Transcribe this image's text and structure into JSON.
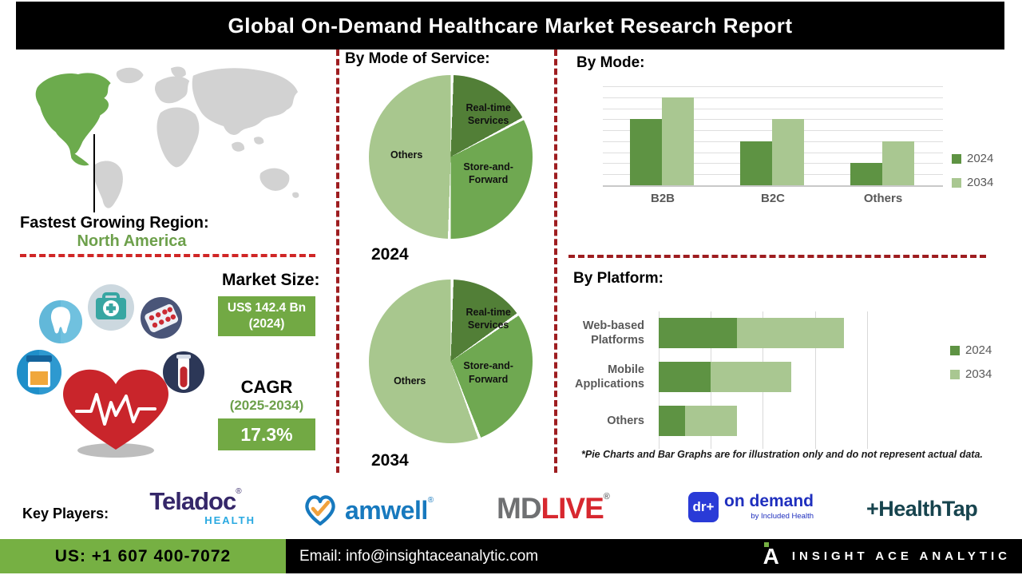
{
  "title": "Global On-Demand Healthcare Market Research Report",
  "region": {
    "heading": "Fastest Growing Region:",
    "value": "North America"
  },
  "headings": {
    "mode_of_service": "By Mode of Service:",
    "by_mode": "By Mode:",
    "by_platform": "By Platform:"
  },
  "market": {
    "heading": "Market Size:",
    "size_value": "US$ 142.4 Bn",
    "size_year": "(2024)",
    "cagr_label": "CAGR",
    "cagr_period": "(2025-2034)",
    "cagr_value": "17.3%"
  },
  "footnote": "*Pie Charts and Bar Graphs are for illustration only and do not represent actual data.",
  "key_players": {
    "label": "Key Players:",
    "teladoc": {
      "name": "Teladoc",
      "reg": "®",
      "sub": "HEALTH"
    },
    "amwell": {
      "name": "amwell",
      "reg": "®"
    },
    "mdlive": {
      "md": "MD",
      "live": "LIVE",
      "reg": "®"
    },
    "doctor_on_demand": {
      "badge": "dr+",
      "name": "on demand",
      "sub": "by Included Health"
    },
    "healthtap": {
      "name": "+HealthTap"
    }
  },
  "footer": {
    "phone": "US: +1 607 400-7072",
    "email": "Email: info@insightaceanalytic.com",
    "brand_initial": "A",
    "brand": "INSIGHT ACE ANALYTIC"
  },
  "colors": {
    "pie_dark_green": "#527f37",
    "pie_mid_green": "#6fa851",
    "pie_light_green": "#a8c78e",
    "bar_2024_green": "#5e9343",
    "bar_2034_green": "#a9c791",
    "accent_box_green": "#72a944",
    "footer_green": "#76b043",
    "map_highlight_green": "#6cab4d",
    "map_gray": "#d2d2d2",
    "dash_red_dark": "#9e1d20",
    "dash_red_bright": "#d02626"
  },
  "chart_data": [
    {
      "type": "pie",
      "title": "By Mode of Service:",
      "year": "2024",
      "labels": [
        "Real-time Services",
        "Store-and-Forward",
        "Others"
      ],
      "values": [
        17,
        33,
        50
      ],
      "colors": [
        "#527f37",
        "#6fa851",
        "#a8c78e"
      ],
      "note": "illustrative percentages estimated from slice angles"
    },
    {
      "type": "pie",
      "title": "By Mode of Service:",
      "year": "2034",
      "labels": [
        "Real-time Services",
        "Store-and-Forward",
        "Others"
      ],
      "values": [
        15,
        29,
        56
      ],
      "colors": [
        "#527f37",
        "#6fa851",
        "#a8c78e"
      ],
      "note": "illustrative percentages estimated from slice angles"
    },
    {
      "type": "bar",
      "title": "By Mode:",
      "categories": [
        "B2B",
        "B2C",
        "Others"
      ],
      "series": [
        {
          "name": "2024",
          "color": "#5e9343",
          "values": [
            6,
            4,
            2
          ]
        },
        {
          "name": "2034",
          "color": "#a9c791",
          "values": [
            8,
            6,
            4
          ]
        }
      ],
      "ylim": [
        0,
        9
      ],
      "grid": true,
      "legend_position": "right",
      "note": "no axis value labels shown; values in gridline units"
    },
    {
      "type": "bar",
      "orientation": "horizontal-stacked",
      "title": "By Platform:",
      "categories": [
        "Web-based Platforms",
        "Mobile Applications",
        "Others"
      ],
      "series": [
        {
          "name": "2024",
          "color": "#5e9343",
          "values": [
            1.5,
            1.0,
            0.5
          ]
        },
        {
          "name": "2034",
          "color": "#a9c791",
          "values": [
            2.05,
            1.55,
            1.0
          ]
        }
      ],
      "xlim": [
        0,
        4.6
      ],
      "grid_step": 1,
      "grid": true,
      "legend_position": "right",
      "note": "no axis value labels shown; values in gridline units"
    }
  ]
}
